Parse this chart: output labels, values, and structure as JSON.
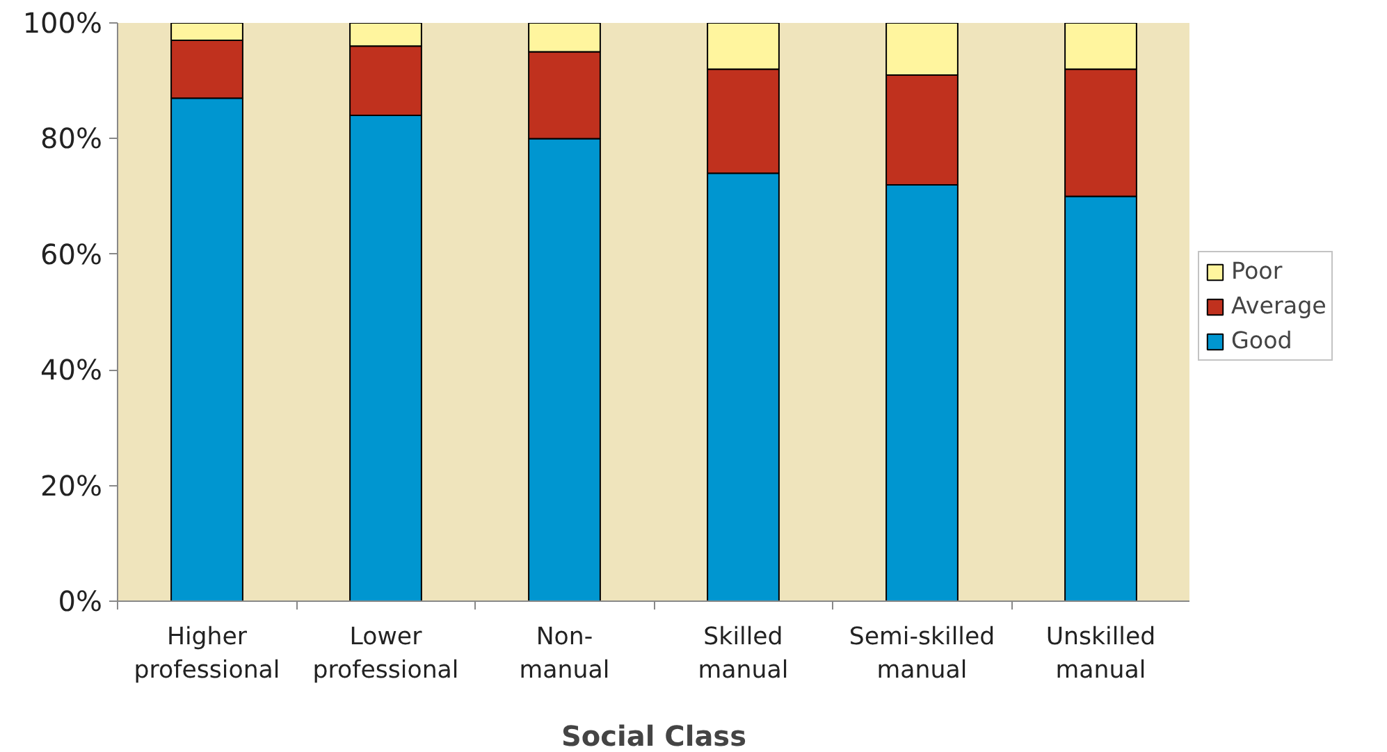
{
  "chart_data": {
    "type": "bar",
    "stacked": true,
    "xlabel": "Social Class",
    "categories": [
      "Higher professional",
      "Lower professional",
      "Non-manual",
      "Skilled manual",
      "Semi-skilled manual",
      "Unskilled manual"
    ],
    "series": [
      {
        "name": "Good",
        "color": "#0096d0",
        "values": [
          87,
          84,
          80,
          74,
          72,
          70
        ]
      },
      {
        "name": "Average",
        "color": "#c0311e",
        "values": [
          10,
          12,
          15,
          18,
          19,
          22
        ]
      },
      {
        "name": "Poor",
        "color": "#fff59e",
        "values": [
          3,
          4,
          5,
          8,
          9,
          8
        ]
      }
    ],
    "ylim": [
      0,
      100
    ],
    "yticks": [
      {
        "value": 0,
        "label": "0%"
      },
      {
        "value": 20,
        "label": "20%"
      },
      {
        "value": 40,
        "label": "40%"
      },
      {
        "value": 60,
        "label": "60%"
      },
      {
        "value": 80,
        "label": "80%"
      },
      {
        "value": 100,
        "label": "100%"
      }
    ],
    "grid": false,
    "legend": "right"
  }
}
